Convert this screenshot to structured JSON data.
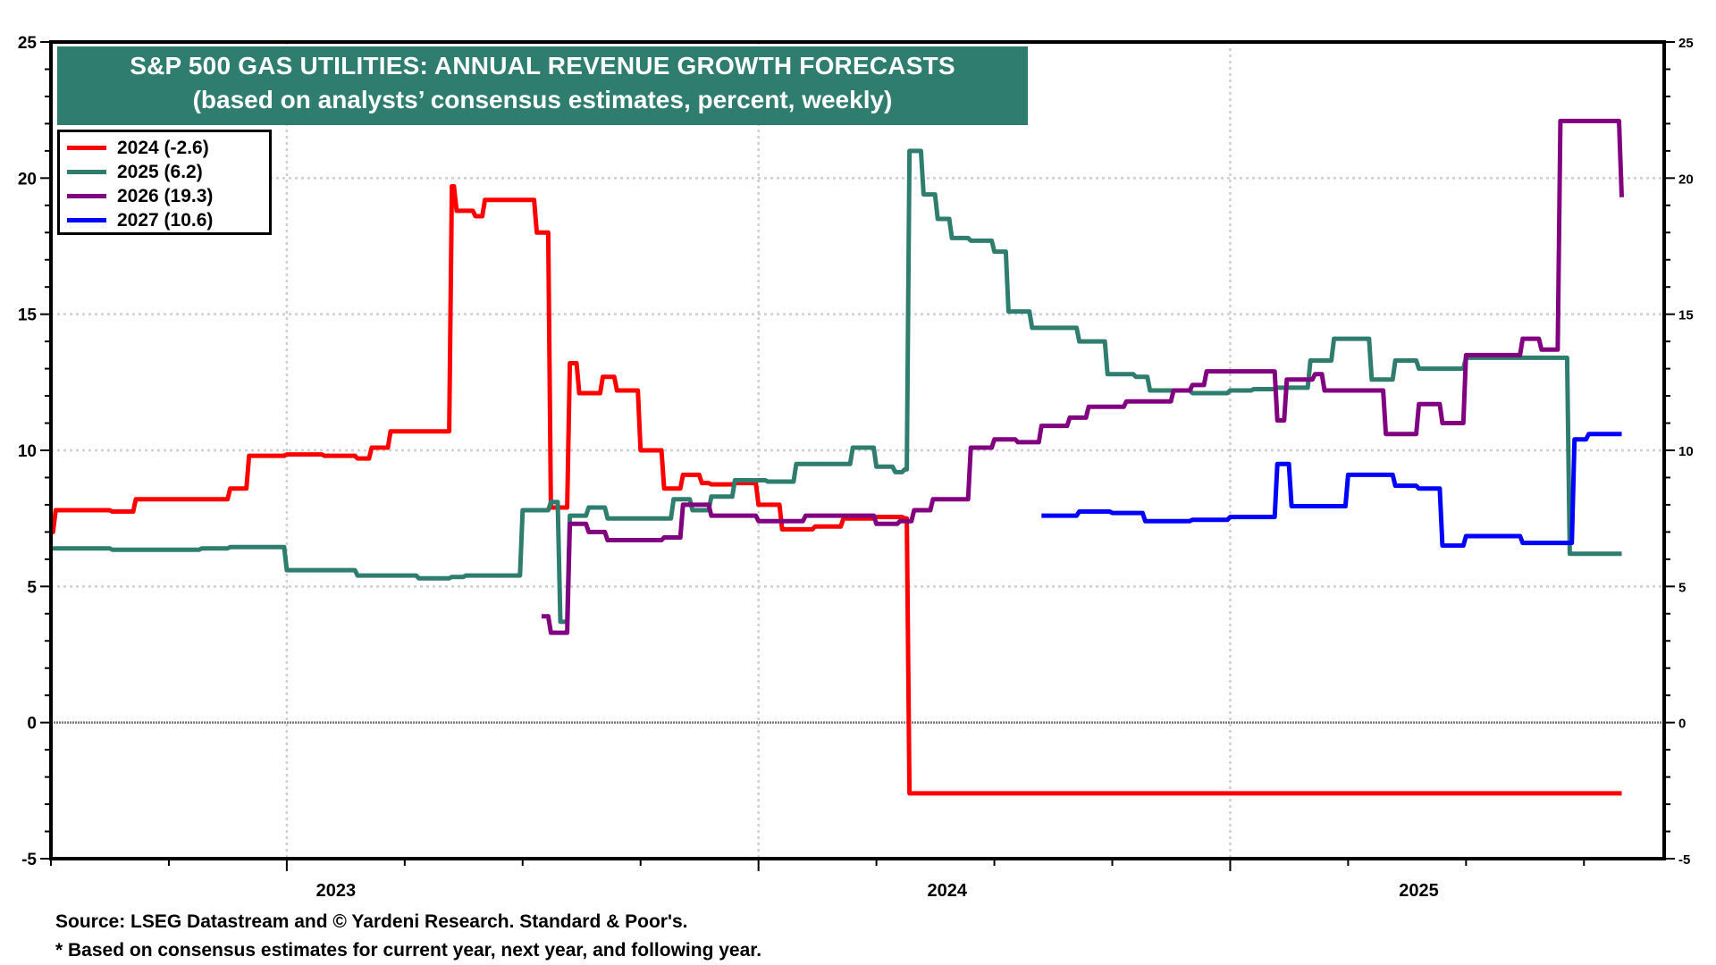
{
  "chart_data": {
    "type": "line",
    "title": "S&P 500 GAS UTILITIES: ANNUAL REVENUE GROWTH FORECASTS",
    "subtitle": "(based on analysts’ consensus estimates, percent, weekly)",
    "xlabel": "",
    "ylabel": "",
    "ylim": [
      -5,
      25
    ],
    "yticks": [
      -5,
      0,
      5,
      10,
      15,
      20,
      25
    ],
    "x_range": [
      2022.5,
      2025.92
    ],
    "x_tick_labels": [
      "2023",
      "2024",
      "2025"
    ],
    "grid": true,
    "legend_position": "top-left",
    "legend": [
      "2024 (-2.6)",
      "2025 (6.2)",
      "2026 (19.3)",
      "2027 (10.6)"
    ],
    "series": [
      {
        "name": "2024 (-2.6)",
        "color": "#ff0000",
        "x": [
          2022.5,
          2022.51,
          2022.63,
          2022.68,
          2022.88,
          2022.92,
          2023.0,
          2023.08,
          2023.15,
          2023.18,
          2023.22,
          2023.35,
          2023.36,
          2023.4,
          2023.42,
          2023.45,
          2023.5,
          2023.53,
          2023.55,
          2023.56,
          2023.58,
          2023.6,
          2023.62,
          2023.67,
          2023.7,
          2023.75,
          2023.8,
          2023.84,
          2023.88,
          2023.9,
          2023.95,
          2024.0,
          2024.05,
          2024.12,
          2024.18,
          2024.25,
          2024.31,
          2024.32,
          2025.83
        ],
        "y": [
          7.0,
          7.8,
          7.75,
          8.2,
          8.6,
          9.8,
          9.85,
          9.8,
          9.7,
          10.1,
          10.7,
          19.7,
          18.8,
          18.6,
          19.2,
          19.2,
          19.2,
          18.0,
          18.0,
          7.9,
          7.9,
          13.2,
          12.1,
          12.7,
          12.2,
          10.0,
          8.6,
          9.1,
          8.8,
          8.75,
          8.8,
          8.0,
          7.1,
          7.2,
          7.5,
          7.55,
          7.5,
          -2.6,
          -2.6
        ]
      },
      {
        "name": "2025 (6.2)",
        "color": "#2e7d6f",
        "x": [
          2022.5,
          2022.63,
          2022.82,
          2022.88,
          2023.0,
          2023.15,
          2023.28,
          2023.35,
          2023.38,
          2023.5,
          2023.55,
          2023.56,
          2023.58,
          2023.6,
          2023.64,
          2023.68,
          2023.72,
          2023.82,
          2023.86,
          2023.9,
          2023.95,
          2024.02,
          2024.08,
          2024.2,
          2024.23,
          2024.25,
          2024.29,
          2024.31,
          2024.32,
          2024.35,
          2024.38,
          2024.41,
          2024.45,
          2024.5,
          2024.53,
          2024.58,
          2024.68,
          2024.74,
          2024.8,
          2024.83,
          2024.92,
          2025.0,
          2025.05,
          2025.1,
          2025.17,
          2025.22,
          2025.3,
          2025.35,
          2025.4,
          2025.5,
          2025.58,
          2025.71,
          2025.72,
          2025.83
        ],
        "y": [
          6.4,
          6.35,
          6.4,
          6.45,
          5.6,
          5.4,
          5.3,
          5.35,
          5.4,
          7.8,
          7.8,
          8.1,
          3.7,
          7.6,
          7.9,
          7.5,
          7.5,
          8.2,
          7.8,
          8.3,
          8.9,
          8.85,
          9.5,
          10.1,
          10.1,
          9.4,
          9.2,
          9.3,
          21.0,
          19.4,
          18.5,
          17.8,
          17.7,
          17.3,
          15.1,
          14.5,
          14.0,
          12.8,
          12.7,
          12.2,
          12.1,
          12.2,
          12.25,
          12.3,
          13.3,
          14.1,
          12.6,
          13.3,
          13.0,
          13.4,
          13.4,
          13.4,
          6.2,
          6.2
        ]
      },
      {
        "name": "2026 (19.3)",
        "color": "#800080",
        "x": [
          2023.54,
          2023.56,
          2023.6,
          2023.64,
          2023.68,
          2023.8,
          2023.84,
          2023.9,
          2024.0,
          2024.1,
          2024.2,
          2024.25,
          2024.3,
          2024.33,
          2024.37,
          2024.42,
          2024.45,
          2024.5,
          2024.55,
          2024.6,
          2024.66,
          2024.7,
          2024.78,
          2024.88,
          2024.92,
          2024.95,
          2025.0,
          2025.05,
          2025.1,
          2025.12,
          2025.18,
          2025.2,
          2025.28,
          2025.33,
          2025.35,
          2025.4,
          2025.45,
          2025.5,
          2025.62,
          2025.66,
          2025.7,
          2025.83
        ],
        "y": [
          3.9,
          3.3,
          7.3,
          7.0,
          6.7,
          6.8,
          8.0,
          7.6,
          7.4,
          7.6,
          7.6,
          7.3,
          7.4,
          7.8,
          8.2,
          8.2,
          10.1,
          10.4,
          10.3,
          10.9,
          11.2,
          11.6,
          11.8,
          12.2,
          12.4,
          12.9,
          12.9,
          12.9,
          11.1,
          12.6,
          12.8,
          12.2,
          12.2,
          10.6,
          10.6,
          11.7,
          11.0,
          13.5,
          14.1,
          13.7,
          22.1,
          19.3
        ]
      },
      {
        "name": "2027 (10.6)",
        "color": "#0000ff",
        "x": [
          2024.6,
          2024.68,
          2024.75,
          2024.82,
          2024.92,
          2025.0,
          2025.05,
          2025.1,
          2025.13,
          2025.2,
          2025.25,
          2025.35,
          2025.4,
          2025.45,
          2025.5,
          2025.62,
          2025.73,
          2025.76,
          2025.83
        ],
        "y": [
          7.6,
          7.75,
          7.7,
          7.4,
          7.45,
          7.55,
          7.55,
          9.5,
          7.95,
          7.95,
          9.1,
          8.7,
          8.6,
          6.5,
          6.85,
          6.6,
          10.4,
          10.6,
          10.6
        ]
      }
    ],
    "zero_line": 0
  },
  "footer": {
    "source": "Source: LSEG Datastream and © Yardeni Research. Standard & Poor's.",
    "note": "* Based on consensus estimates for current year, next year, and following year."
  }
}
